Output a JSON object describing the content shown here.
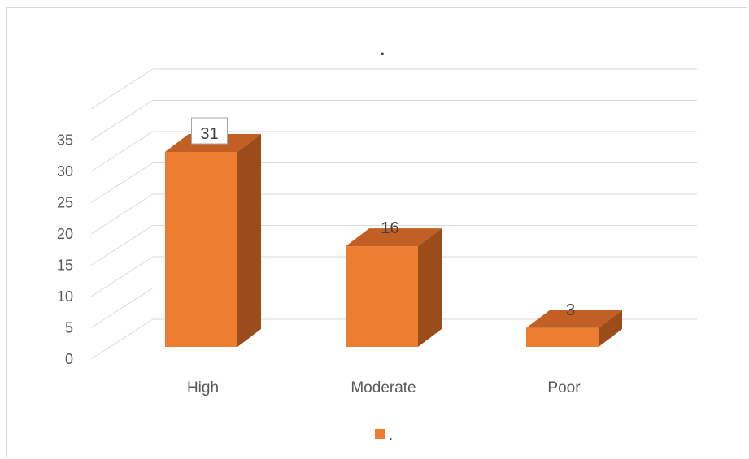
{
  "chart_data": {
    "type": "bar",
    "title": ".",
    "categories": [
      "High",
      "Moderate",
      "Poor"
    ],
    "series": [
      {
        "name": ".",
        "values": [
          31,
          16,
          3
        ]
      }
    ],
    "ylim": [
      0,
      35
    ],
    "yticks": [
      0,
      5,
      10,
      15,
      20,
      25,
      30,
      35
    ],
    "grid": true,
    "legend": "bottom",
    "three_d": true
  },
  "colors": {
    "front": "#ed7d31",
    "side": "#9a4d1b",
    "top": "#c15f24",
    "grid": "#d9d9d9"
  }
}
